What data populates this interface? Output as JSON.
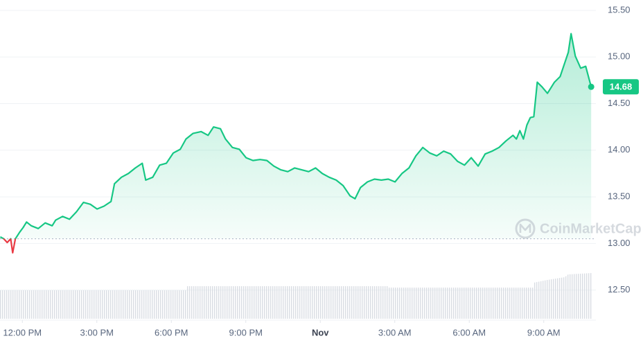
{
  "chart_data": {
    "type": "line",
    "color": "#16c784",
    "below_color": "#ea3943",
    "reference": 13.05,
    "watermark": "CoinMarketCap",
    "grid": true,
    "x": [
      -0.89,
      -0.75,
      -0.61,
      -0.47,
      -0.39,
      -0.28,
      -0.11,
      0.03,
      0.17,
      0.36,
      0.64,
      0.92,
      1.2,
      1.34,
      1.62,
      1.9,
      2.18,
      2.46,
      2.74,
      3.01,
      3.29,
      3.57,
      3.71,
      3.99,
      4.27,
      4.55,
      4.83,
      4.97,
      5.25,
      5.53,
      5.8,
      6.08,
      6.36,
      6.59,
      6.87,
      7.2,
      7.48,
      7.7,
      7.98,
      8.18,
      8.46,
      8.74,
      9.01,
      9.29,
      9.57,
      9.85,
      10.13,
      10.41,
      10.69,
      10.97,
      11.25,
      11.53,
      11.81,
      12.08,
      12.36,
      12.64,
      12.92,
      13.2,
      13.4,
      13.62,
      13.9,
      14.18,
      14.46,
      14.74,
      15.01,
      15.29,
      15.57,
      15.85,
      16.13,
      16.41,
      16.69,
      16.97,
      17.25,
      17.53,
      17.81,
      18.08,
      18.36,
      18.64,
      18.92,
      19.2,
      19.48,
      19.76,
      19.9,
      20.04,
      20.18,
      20.32,
      20.46,
      20.6,
      20.74,
      20.93,
      21.15,
      21.43,
      21.66,
      21.85,
      21.99,
      22.1,
      22.27,
      22.49,
      22.69,
      22.91
    ],
    "values": [
      13.07,
      13.05,
      13.01,
      13.05,
      12.9,
      13.05,
      13.12,
      13.17,
      13.23,
      13.19,
      13.16,
      13.22,
      13.19,
      13.25,
      13.29,
      13.26,
      13.34,
      13.44,
      13.42,
      13.37,
      13.4,
      13.45,
      13.64,
      13.71,
      13.75,
      13.81,
      13.86,
      13.68,
      13.71,
      13.84,
      13.86,
      13.97,
      14.01,
      14.12,
      14.18,
      14.2,
      14.16,
      14.25,
      14.23,
      14.12,
      14.03,
      14.01,
      13.92,
      13.89,
      13.9,
      13.89,
      13.83,
      13.79,
      13.77,
      13.81,
      13.79,
      13.77,
      13.81,
      13.75,
      13.71,
      13.68,
      13.62,
      13.51,
      13.48,
      13.6,
      13.66,
      13.69,
      13.68,
      13.69,
      13.66,
      13.75,
      13.81,
      13.94,
      14.03,
      13.97,
      13.94,
      13.99,
      13.96,
      13.88,
      13.84,
      13.92,
      13.83,
      13.96,
      13.99,
      14.03,
      14.1,
      14.16,
      14.12,
      14.21,
      14.12,
      14.27,
      14.35,
      14.36,
      14.73,
      14.68,
      14.61,
      14.73,
      14.79,
      14.94,
      15.05,
      15.25,
      15.01,
      14.88,
      14.9,
      14.68
    ],
    "xlim": [
      -0.9,
      23.1
    ],
    "xticks": [
      {
        "value": 0,
        "label": "12:00 PM"
      },
      {
        "value": 3,
        "label": "3:00 PM"
      },
      {
        "value": 6,
        "label": "6:00 PM"
      },
      {
        "value": 9,
        "label": "9:00 PM"
      },
      {
        "value": 12,
        "label": "Nov"
      },
      {
        "value": 15,
        "label": "3:00 AM"
      },
      {
        "value": 18,
        "label": "6:00 AM"
      },
      {
        "value": 21,
        "label": "9:00 AM"
      }
    ],
    "ylim": [
      12.2,
      15.6
    ],
    "yticks": [
      {
        "value": 15.5,
        "label": "15.50"
      },
      {
        "value": 15,
        "label": "15.00"
      },
      {
        "value": 14.5,
        "label": "14.50"
      },
      {
        "value": 14,
        "label": "14.00"
      },
      {
        "value": 13.5,
        "label": "13.50"
      },
      {
        "value": 13,
        "label": "13.00"
      },
      {
        "value": 12.5,
        "label": "12.50"
      }
    ]
  }
}
